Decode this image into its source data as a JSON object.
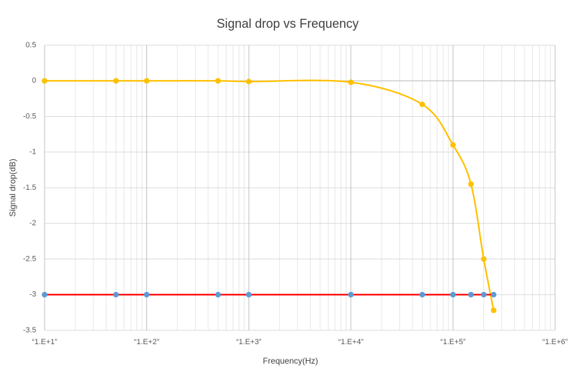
{
  "chart_data": {
    "type": "line",
    "title": "Signal drop vs Frequency",
    "x_label": "Frequency(Hz)",
    "y_label": "Signal drop(dB)",
    "log_x": true,
    "grid": true,
    "minor_grid": true,
    "xlim": [
      10,
      1000000
    ],
    "xticks": [
      {
        "value": 10,
        "label": "“1.E+1”"
      },
      {
        "value": 100,
        "label": "“1.E+2”"
      },
      {
        "value": 1000,
        "label": "“1.E+3”"
      },
      {
        "value": 10000,
        "label": "“1.E+4”"
      },
      {
        "value": 100000,
        "label": "“1.E+5”"
      },
      {
        "value": 1000000,
        "label": "“1.E+6”"
      }
    ],
    "ylim": [
      -3.5,
      0.5
    ],
    "yticks": [
      0.5,
      0,
      -0.5,
      -1,
      -1.5,
      -2,
      -2.5,
      -3,
      -3.5
    ],
    "series": [
      {
        "color": "#ffc000",
        "marker_color": "#ffc000",
        "smooth": true,
        "x": [
          10,
          50,
          100,
          500,
          1000,
          10000,
          50000,
          100000,
          150000,
          200000,
          250000
        ],
        "values": [
          0,
          0,
          0,
          0,
          -0.01,
          -0.02,
          -0.33,
          -0.9,
          -1.45,
          -2.5,
          -3.22
        ]
      },
      {
        "color": "#ff0000",
        "marker_color": "#5b9bd5",
        "smooth": false,
        "x": [
          10,
          50,
          100,
          500,
          1000,
          10000,
          50000,
          100000,
          150000,
          200000,
          250000
        ],
        "values": [
          -3,
          -3,
          -3,
          -3,
          -3,
          -3,
          -3,
          -3,
          -3,
          -3,
          -3
        ]
      }
    ]
  }
}
